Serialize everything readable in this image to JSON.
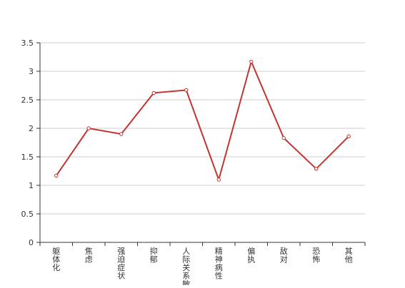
{
  "chart_data": {
    "type": "line",
    "categories": [
      "躯体化",
      "焦虑",
      "强迫症状",
      "抑郁",
      "人际关系敏感",
      "精神病性",
      "偏执",
      "敌对",
      "恐怖",
      "其他"
    ],
    "series": [
      {
        "values": [
          1.17,
          2.0,
          1.9,
          2.62,
          2.67,
          1.1,
          3.17,
          1.83,
          1.29,
          1.86
        ],
        "color": "#c23531"
      }
    ],
    "ylim": [
      0,
      3.5
    ],
    "yticks": [
      "0",
      "0.5",
      "1",
      "1.5",
      "2",
      "2.5",
      "3",
      "3.5"
    ],
    "grid": true,
    "title": "",
    "xlabel": "",
    "ylabel": ""
  }
}
